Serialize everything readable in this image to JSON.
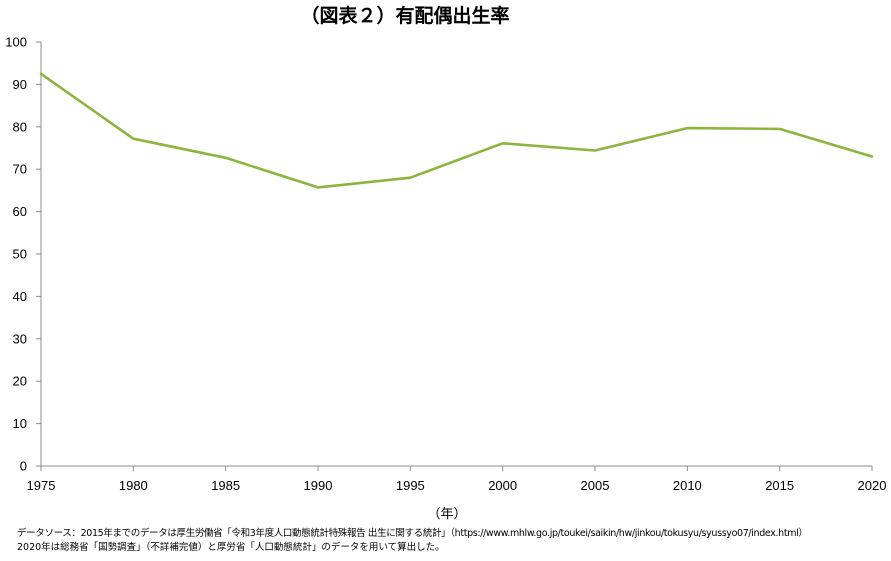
{
  "chart_data": {
    "type": "line",
    "title": "（図表２）有配偶出生率",
    "xlabel": "（年）",
    "ylabel": "",
    "x": [
      1975,
      1980,
      1985,
      1990,
      1995,
      2000,
      2005,
      2010,
      2015,
      2020
    ],
    "x_tick_labels": [
      "1975",
      "1980",
      "1985",
      "1990",
      "1995",
      "2000",
      "2005",
      "2010",
      "2015",
      "2020"
    ],
    "y_ticks": [
      0,
      10,
      20,
      30,
      40,
      50,
      60,
      70,
      80,
      90,
      100
    ],
    "y_tick_labels": [
      "0",
      "10",
      "20",
      "30",
      "40",
      "50",
      "60",
      "70",
      "80",
      "90",
      "100"
    ],
    "ylim": [
      0,
      100
    ],
    "grid": false,
    "legend": "none",
    "series": [
      {
        "color": "#8bb53d",
        "values": [
          92.5,
          77.2,
          72.7,
          65.7,
          68.0,
          76.1,
          74.4,
          79.7,
          79.5,
          73.0
        ]
      }
    ]
  },
  "source": {
    "line1": "データソース：2015年までのデータは厚生労働省「令和3年度人口動態統計特殊報告 出生に関する統計」（https://www.mhlw.go.jp/toukei/saikin/hw/jinkou/tokusyu/syussyo07/index.html）",
    "line2": "2020年は総務省「国勢調査」（不詳補完値）と厚労省「人口動態統計」のデータを用いて算出した。"
  }
}
